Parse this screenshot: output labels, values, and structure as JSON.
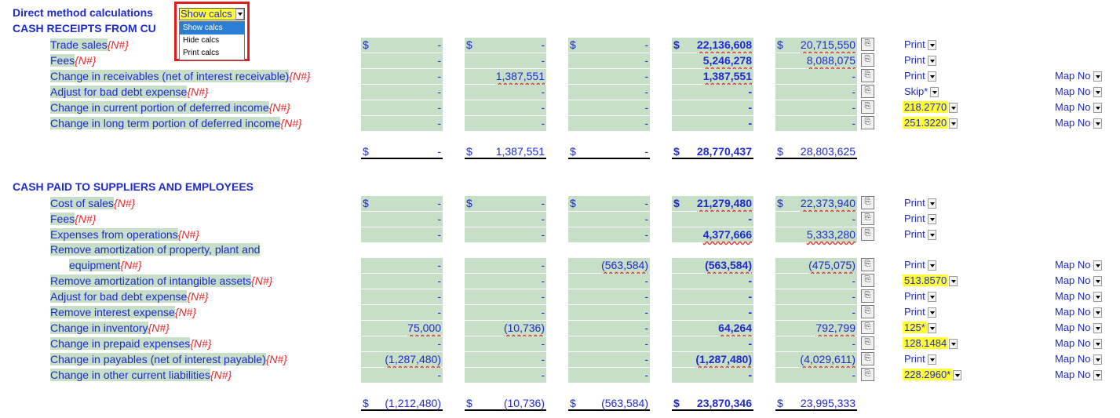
{
  "header": {
    "title": "Direct method calculations",
    "dropdown_value": "Show calcs",
    "options": [
      "Show calcs",
      "Hide calcs",
      "Print calcs"
    ]
  },
  "sections": [
    {
      "title": "CASH RECEIPTS FROM CU",
      "rows": [
        {
          "label": "Trade sales",
          "tag": "{N#}",
          "c1": "-",
          "c2": "-",
          "c3": "-",
          "c4": "22,136,608",
          "c5": "20,715,550",
          "status": "Print",
          "map": ""
        },
        {
          "label": "Fees",
          "tag": "{N#}",
          "c1": "-",
          "c2": "-",
          "c3": "-",
          "c4": "5,246,278",
          "c5": "8,088,075",
          "status": "Print",
          "map": ""
        },
        {
          "label": "Change in receivables (net of interest receivable)",
          "tag": "{N#}",
          "c1": "-",
          "c2": "1,387,551",
          "c3": "-",
          "c4": "1,387,551",
          "c5": "-",
          "status": "Print",
          "map": "Map No"
        },
        {
          "label": "Adjust for bad debt expense",
          "tag": "{N#}",
          "c1": "-",
          "c2": "-",
          "c3": "-",
          "c4": "-",
          "c5": "-",
          "status": "Skip*",
          "map": "Map No"
        },
        {
          "label": "Change in current portion of deferred income",
          "tag": "{N#}",
          "c1": "-",
          "c2": "-",
          "c3": "-",
          "c4": "-",
          "c5": "-",
          "status": "218.2770",
          "map": "Map No"
        },
        {
          "label": "Change in long term portion of deferred income",
          "tag": "{N#}",
          "c1": "-",
          "c2": "-",
          "c3": "-",
          "c4": "-",
          "c5": "-",
          "status": "251.3220",
          "map": "Map No"
        }
      ],
      "totals": {
        "c1": "-",
        "c2": "1,387,551",
        "c3": "-",
        "c4": "28,770,437",
        "c5": "28,803,625"
      }
    },
    {
      "title": "CASH PAID TO SUPPLIERS AND EMPLOYEES",
      "rows": [
        {
          "label": "Cost of sales",
          "tag": "{N#}",
          "c1": "-",
          "c2": "-",
          "c3": "-",
          "c4": "21,279,480",
          "c5": "22,373,940",
          "status": "Print",
          "map": ""
        },
        {
          "label": "Fees",
          "tag": "{N#}",
          "c1": "-",
          "c2": "-",
          "c3": "-",
          "c4": "-",
          "c5": "-",
          "status": "Print",
          "map": ""
        },
        {
          "label": "Expenses from operations",
          "tag": "{N#}",
          "c1": "-",
          "c2": "-",
          "c3": "-",
          "c4": "4,377,666",
          "c5": "5,333,280",
          "status": "Print",
          "map": ""
        },
        {
          "label": "Remove amortization of property, plant and",
          "label2": "equipment",
          "tag": "{N#}",
          "c1": "-",
          "c2": "-",
          "c3": "(563,584)",
          "c4": "(563,584)",
          "c5": "(475,075)",
          "status": "Print",
          "map": "Map No"
        },
        {
          "label": "Remove amortization of intangible assets",
          "tag": "{N#}",
          "c1": "-",
          "c2": "-",
          "c3": "-",
          "c4": "-",
          "c5": "-",
          "status": "513.8570",
          "map": "Map No"
        },
        {
          "label": "Adjust for bad debt expense",
          "tag": "{N#}",
          "c1": "-",
          "c2": "-",
          "c3": "-",
          "c4": "-",
          "c5": "-",
          "status": "Print",
          "map": "Map No"
        },
        {
          "label": "Remove interest expense",
          "tag": "{N#}",
          "c1": "-",
          "c2": "-",
          "c3": "-",
          "c4": "-",
          "c5": "-",
          "status": "Print",
          "map": "Map No"
        },
        {
          "label": "Change in inventory",
          "tag": "{N#}",
          "c1": "75,000",
          "c2": "(10,736)",
          "c3": "-",
          "c4": "64,264",
          "c5": "792,799",
          "status": "125*",
          "map": "Map No"
        },
        {
          "label": "Change in prepaid expenses",
          "tag": "{N#}",
          "c1": "-",
          "c2": "-",
          "c3": "-",
          "c4": "-",
          "c5": "-",
          "status": "128.1484",
          "map": "Map No"
        },
        {
          "label": "Change in payables (net of interest payable)",
          "tag": "{N#}",
          "c1": "(1,287,480)",
          "c2": "-",
          "c3": "-",
          "c4": "(1,287,480)",
          "c5": "(4,029,611)",
          "status": "Print",
          "map": "Map No"
        },
        {
          "label": "Change in other current liabilities",
          "tag": "{N#}",
          "c1": "-",
          "c2": "-",
          "c3": "-",
          "c4": "-",
          "c5": "-",
          "status": "228.2960*",
          "map": "Map No"
        }
      ],
      "totals": {
        "c1": "(1,212,480)",
        "c2": "(10,736)",
        "c3": "(563,584)",
        "c4": "23,870,346",
        "c5": "23,995,333"
      }
    }
  ],
  "currency": "$",
  "colors": {
    "text": "#1f2bd1",
    "tag": "#e8262b",
    "cell_bg": "#c6dfc6",
    "highlight": "#ffff33",
    "menu_border": "#e31b1b",
    "menu_highlight": "#2a7fd4"
  }
}
